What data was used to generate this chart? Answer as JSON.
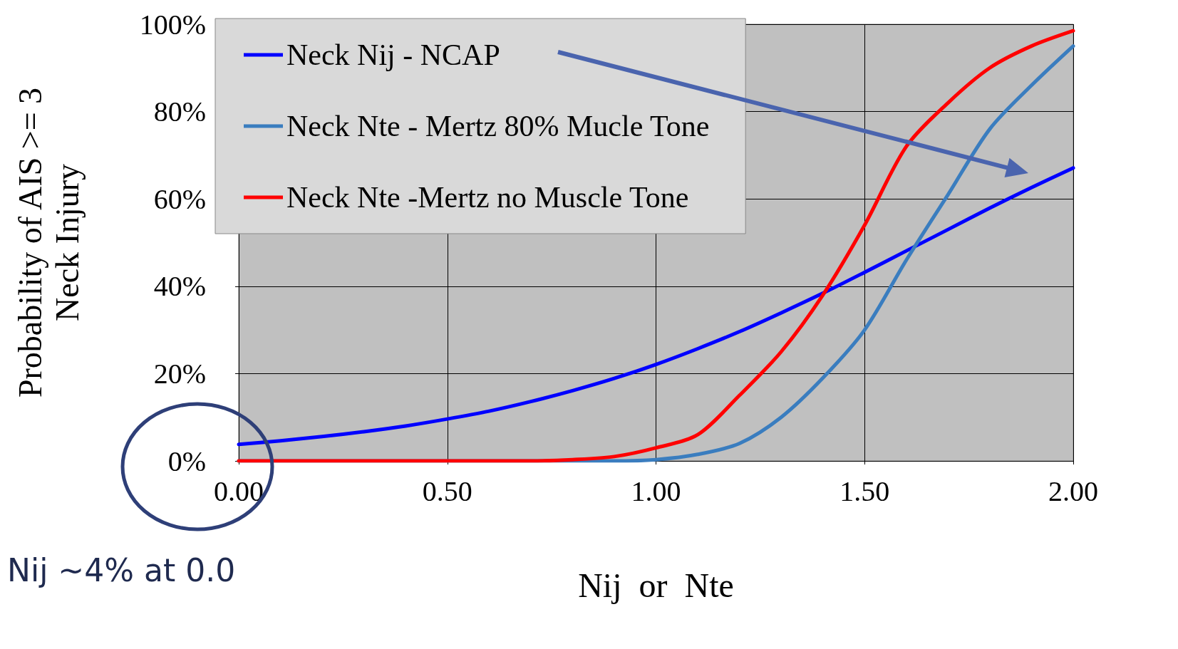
{
  "chart_data": {
    "type": "line",
    "xlabel": "Nij  or  Nte",
    "ylabel": "Probability of AIS >= 3\nNeck Injury",
    "x": [
      0,
      0.1,
      0.2,
      0.3,
      0.4,
      0.5,
      0.6,
      0.7,
      0.8,
      0.9,
      1.0,
      1.1,
      1.2,
      1.3,
      1.4,
      1.5,
      1.6,
      1.7,
      1.8,
      1.9,
      2.0
    ],
    "series": [
      {
        "name": "Neck Nij - NCAP",
        "color": "#0000ff",
        "values": [
          3.8,
          4.6,
          5.6,
          6.7,
          8.0,
          9.6,
          11.4,
          13.6,
          16.1,
          18.9,
          22.1,
          25.7,
          29.6,
          33.9,
          38.4,
          43.2,
          48.1,
          53.0,
          57.9,
          62.6,
          67.1
        ]
      },
      {
        "name": "Neck Nte - Mertz 80% Mucle Tone",
        "color": "#3a7dbf",
        "values": [
          0,
          0,
          0,
          0,
          0,
          0,
          0,
          0,
          0,
          0,
          0.3,
          1.5,
          4,
          10,
          19,
          30,
          46,
          61,
          76,
          86,
          95
        ]
      },
      {
        "name": "Neck Nte -Mertz no Muscle Tone",
        "color": "#ff0000",
        "values": [
          0,
          0,
          0,
          0,
          0,
          0,
          0,
          0,
          0.3,
          1,
          3,
          6,
          15,
          25,
          38,
          54,
          72,
          82,
          90,
          95,
          98.5
        ]
      }
    ],
    "xlim": [
      0,
      2
    ],
    "xticks": [
      {
        "value": 0,
        "label": "0.00"
      },
      {
        "value": 0.5,
        "label": "0.50"
      },
      {
        "value": 1,
        "label": "1.00"
      },
      {
        "value": 1.5,
        "label": "1.50"
      },
      {
        "value": 2,
        "label": "2.00"
      }
    ],
    "ylim": [
      0,
      100
    ],
    "yticks": [
      {
        "value": 0,
        "label": "0%"
      },
      {
        "value": 20,
        "label": "20%"
      },
      {
        "value": 40,
        "label": "40%"
      },
      {
        "value": 60,
        "label": "60%"
      },
      {
        "value": 80,
        "label": "80%"
      },
      {
        "value": 100,
        "label": "100%"
      }
    ],
    "grid": true,
    "legend": "top left",
    "marker": "none",
    "line_style": "solid",
    "annotations": [
      "Nij ~4% at 0.0"
    ]
  }
}
